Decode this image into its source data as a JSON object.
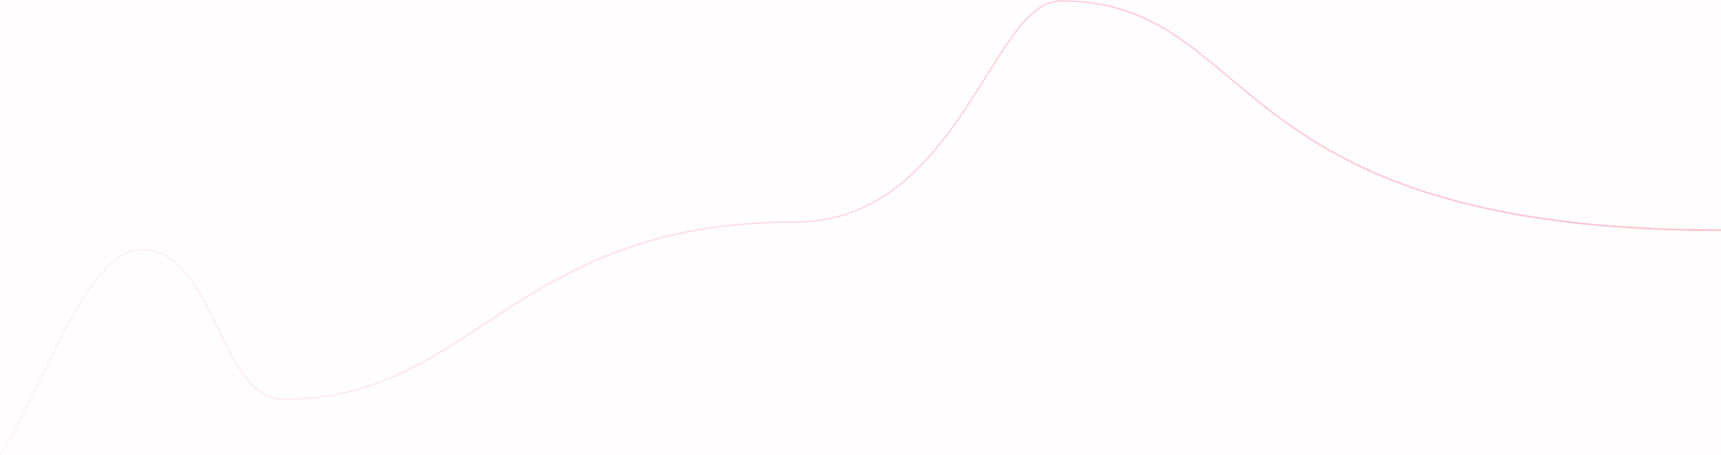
{
  "decoration": {
    "shape": "wave-line",
    "stroke_color_start": "#fff5f6",
    "stroke_color_end": "#ffb8c6",
    "background_color": "#fffdfd"
  }
}
